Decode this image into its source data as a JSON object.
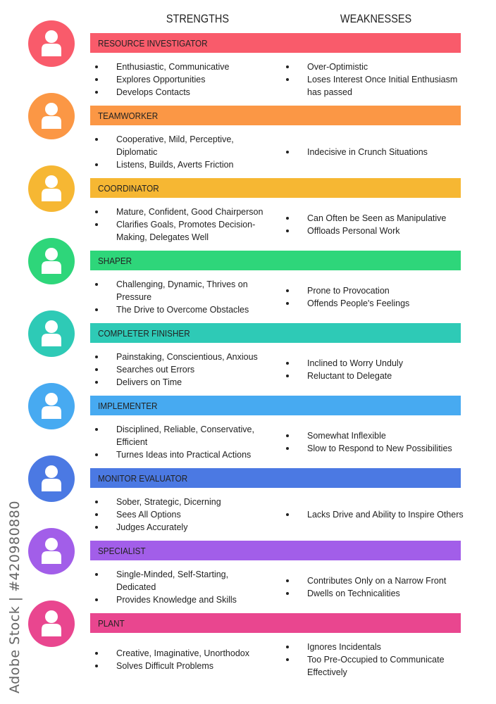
{
  "headers": {
    "strengths": "STRENGTHS",
    "weaknesses": "WEAKNESSES"
  },
  "watermark": "Adobe Stock | #420980880",
  "roles": [
    {
      "name": "RESOURCE INVESTIGATOR",
      "color": "#f95b6b",
      "icon": "person-icon",
      "strengths": [
        "Enthusiastic, Communicative",
        "Explores Opportunities",
        "Develops Contacts"
      ],
      "weaknesses": [
        "Over-Optimistic",
        "Loses Interest Once Initial Enthusiasm has passed"
      ]
    },
    {
      "name": "TEAMWORKER",
      "color": "#fb9745",
      "icon": "person-icon",
      "strengths": [
        "Cooperative, Mild, Perceptive, Diplomatic",
        "Listens, Builds, Averts Friction"
      ],
      "weaknesses": [
        "Indecisive in Crunch Situations"
      ]
    },
    {
      "name": "COORDINATOR",
      "color": "#f6b733",
      "icon": "person-icon",
      "strengths": [
        "Mature, Confident, Good Chairperson",
        "Clarifies Goals, Promotes Decision-Making, Delegates Well"
      ],
      "weaknesses": [
        "Can Often be Seen as Manipulative",
        "Offloads Personal Work"
      ]
    },
    {
      "name": "SHAPER",
      "color": "#2ed67a",
      "icon": "person-icon",
      "strengths": [
        "Challenging, Dynamic, Thrives on Pressure",
        "The Drive to Overcome Obstacles"
      ],
      "weaknesses": [
        "Prone to Provocation",
        "Offends People's Feelings"
      ]
    },
    {
      "name": "COMPLETER  FINISHER",
      "color": "#2ecab6",
      "icon": "person-icon",
      "strengths": [
        "Painstaking, Conscientious, Anxious",
        "Searches out Errors",
        "Delivers on Time"
      ],
      "weaknesses": [
        "Inclined to Worry Unduly",
        "Reluctant to Delegate"
      ]
    },
    {
      "name": "IMPLEMENTER",
      "color": "#47aaf1",
      "icon": "person-icon",
      "strengths": [
        "Disciplined, Reliable, Conservative, Efficient",
        "Turnes Ideas into Practical Actions"
      ],
      "weaknesses": [
        "Somewhat Inflexible",
        "Slow to Respond to New Possibilities"
      ]
    },
    {
      "name": "MONITOR EVALUATOR",
      "color": "#4b79e3",
      "icon": "person-icon",
      "strengths": [
        "Sober, Strategic, Dicerning",
        "Sees All Options",
        "Judges Accurately"
      ],
      "weaknesses": [
        "Lacks Drive and Ability to Inspire Others"
      ]
    },
    {
      "name": "SPECIALIST",
      "color": "#a25ee9",
      "icon": "person-icon",
      "strengths": [
        "Single-Minded, Self-Starting, Dedicated",
        "Provides Knowledge and Skills"
      ],
      "weaknesses": [
        "Contributes Only on a Narrow Front",
        "Dwells on Technicalities"
      ]
    },
    {
      "name": "PLANT",
      "color": "#e9468f",
      "icon": "person-icon",
      "strengths": [
        "Creative, Imaginative, Unorthodox",
        "Solves Difficult Problems"
      ],
      "weaknesses": [
        "Ignores Incidentals",
        "Too Pre-Occupied to Communicate Effectively"
      ]
    }
  ]
}
